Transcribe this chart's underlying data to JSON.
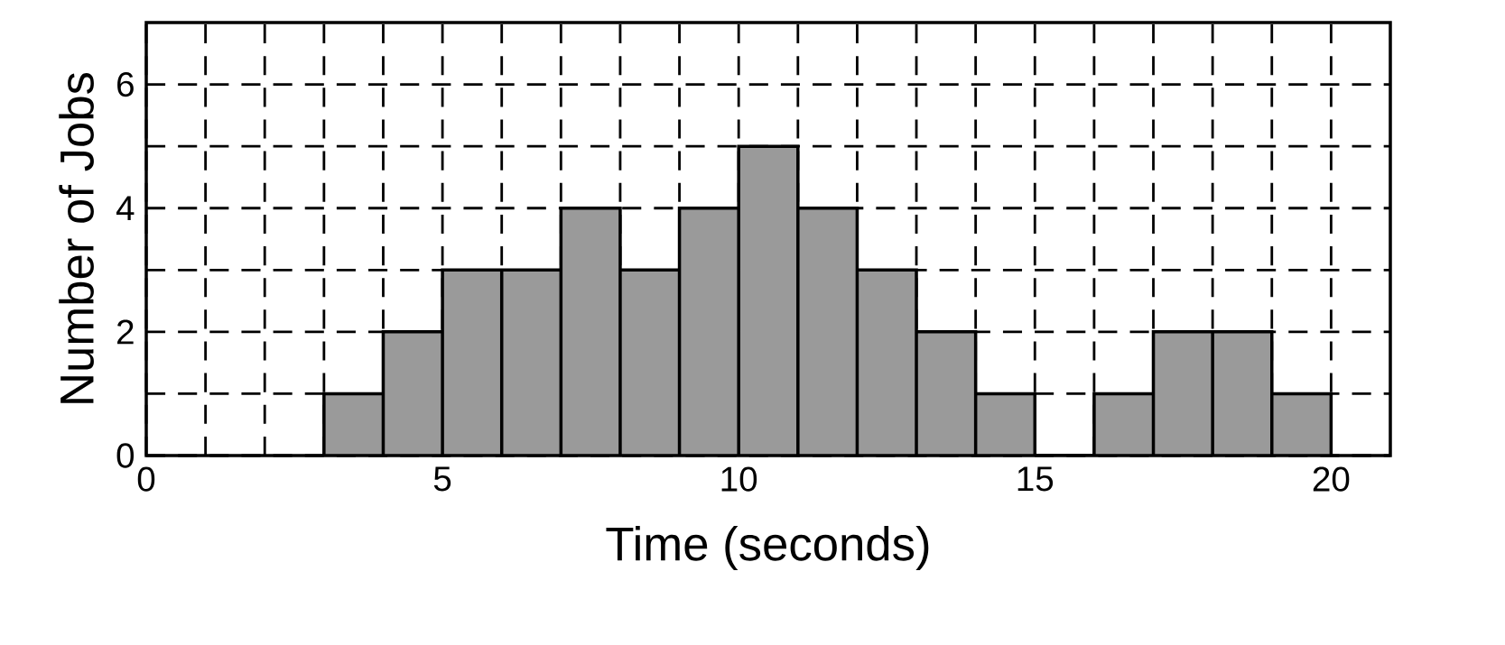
{
  "chart_data": {
    "type": "histogram",
    "xlabel": "Time (seconds)",
    "ylabel": "Number of Jobs",
    "bins": [
      3,
      4,
      5,
      6,
      7,
      8,
      9,
      10,
      11,
      12,
      13,
      14,
      15,
      16,
      17,
      18,
      19,
      20
    ],
    "values": [
      1,
      2,
      3,
      3,
      4,
      3,
      4,
      5,
      4,
      3,
      2,
      1,
      0,
      1,
      2,
      2,
      1
    ],
    "color": "#9a9a9a",
    "xlim": [
      0,
      21
    ],
    "ylim": [
      0,
      7
    ],
    "xticks": [
      0,
      {
        "value": 1,
        "label": null
      },
      {
        "value": 2,
        "label": null
      },
      {
        "value": 3,
        "label": null
      },
      {
        "value": 4,
        "label": null
      },
      5,
      {
        "value": 6,
        "label": null
      },
      {
        "value": 7,
        "label": null
      },
      {
        "value": 8,
        "label": null
      },
      {
        "value": 9,
        "label": null
      },
      10,
      {
        "value": 11,
        "label": null
      },
      {
        "value": 12,
        "label": null
      },
      {
        "value": 13,
        "label": null
      },
      {
        "value": 14,
        "label": null
      },
      15,
      {
        "value": 16,
        "label": null
      },
      {
        "value": 17,
        "label": null
      },
      {
        "value": 18,
        "label": null
      },
      {
        "value": 19,
        "label": null
      },
      20
    ],
    "yticks": [
      0,
      {
        "value": 1,
        "label": null
      },
      2,
      {
        "value": 3,
        "label": null
      },
      4,
      {
        "value": 5,
        "label": null
      },
      6
    ],
    "grid": true
  }
}
